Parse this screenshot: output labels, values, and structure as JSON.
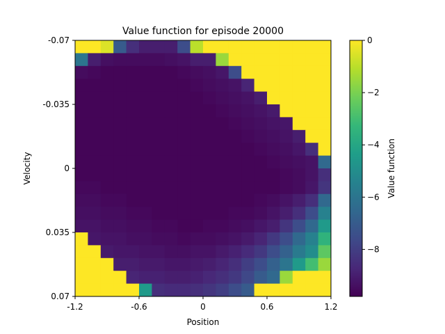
{
  "chart_data": {
    "type": "heatmap",
    "title": "Value function for episode 20000",
    "xlabel": "Position",
    "ylabel": "Velocity",
    "colorbar_label": "Value function",
    "x_range": [
      -1.2,
      1.2
    ],
    "y_range": [
      -0.07,
      0.07
    ],
    "x_ticks": [
      {
        "value": -1.2,
        "label": "-1.2"
      },
      {
        "value": -0.6,
        "label": "-0.6"
      },
      {
        "value": 0,
        "label": "0"
      },
      {
        "value": 0.6,
        "label": "0.6"
      },
      {
        "value": 1.2,
        "label": "1.2"
      }
    ],
    "y_ticks": [
      {
        "value": -0.07,
        "label": "-0.07"
      },
      {
        "value": -0.035,
        "label": "-0.035"
      },
      {
        "value": 0,
        "label": "0"
      },
      {
        "value": 0.035,
        "label": "0.035"
      },
      {
        "value": 0.07,
        "label": "0.07"
      }
    ],
    "colorbar_range": [
      -9.8,
      0
    ],
    "colorbar_ticks": [
      {
        "value": 0,
        "label": "0"
      },
      {
        "value": -2,
        "label": "−2"
      },
      {
        "value": -4,
        "label": "−4"
      },
      {
        "value": -6,
        "label": "−6"
      },
      {
        "value": -8,
        "label": "−8"
      }
    ],
    "colormap": [
      "#440154",
      "#482878",
      "#3e4a89",
      "#31688e",
      "#26828e",
      "#1f9e89",
      "#35b779",
      "#6ece58",
      "#b5de2b",
      "#fde725"
    ],
    "grid_size": [
      20,
      20
    ],
    "values": [
      [
        0,
        0,
        -0.5,
        -7,
        -8.5,
        -9,
        -9,
        -9,
        -7.5,
        -1,
        0,
        0,
        0,
        0,
        0,
        0,
        0,
        0,
        0,
        0
      ],
      [
        -6,
        -9,
        -9.4,
        -9.5,
        -9.5,
        -9.5,
        -9.5,
        -9.4,
        -9.3,
        -9,
        -9,
        -1.5,
        0,
        0,
        0,
        0,
        0,
        0,
        0,
        0
      ],
      [
        -9.5,
        -9.6,
        -9.7,
        -9.7,
        -9.7,
        -9.7,
        -9.7,
        -9.7,
        -9.6,
        -9.5,
        -9.4,
        -9.2,
        -7.5,
        0,
        0,
        0,
        0,
        0,
        0,
        0
      ],
      [
        -9.7,
        -9.7,
        -9.7,
        -9.7,
        -9.7,
        -9.7,
        -9.7,
        -9.7,
        -9.7,
        -9.6,
        -9.5,
        -9.4,
        -9.3,
        -8.8,
        0,
        0,
        0,
        0,
        0,
        0
      ],
      [
        -9.7,
        -9.7,
        -9.7,
        -9.7,
        -9.7,
        -9.7,
        -9.7,
        -9.7,
        -9.7,
        -9.7,
        -9.6,
        -9.5,
        -9.4,
        -9.3,
        -9.0,
        0,
        0,
        0,
        0,
        0
      ],
      [
        -9.7,
        -9.7,
        -9.7,
        -9.7,
        -9.7,
        -9.7,
        -9.7,
        -9.7,
        -9.7,
        -9.7,
        -9.7,
        -9.6,
        -9.5,
        -9.4,
        -9.3,
        -9.1,
        0,
        0,
        0,
        0
      ],
      [
        -9.7,
        -9.7,
        -9.7,
        -9.7,
        -9.7,
        -9.7,
        -9.7,
        -9.7,
        -9.7,
        -9.7,
        -9.7,
        -9.7,
        -9.6,
        -9.5,
        -9.4,
        -9.3,
        -9.2,
        0,
        0,
        0
      ],
      [
        -9.7,
        -9.7,
        -9.7,
        -9.7,
        -9.7,
        -9.7,
        -9.7,
        -9.7,
        -9.7,
        -9.7,
        -9.7,
        -9.7,
        -9.7,
        -9.6,
        -9.5,
        -9.4,
        -9.3,
        -9.0,
        0,
        0
      ],
      [
        -9.7,
        -9.7,
        -9.7,
        -9.7,
        -9.7,
        -9.7,
        -9.7,
        -9.7,
        -9.7,
        -9.7,
        -9.7,
        -9.7,
        -9.7,
        -9.7,
        -9.6,
        -9.5,
        -9.4,
        -9.2,
        -8.5,
        0
      ],
      [
        -9.7,
        -9.7,
        -9.7,
        -9.7,
        -9.7,
        -9.7,
        -9.7,
        -9.7,
        -9.7,
        -9.7,
        -9.7,
        -9.7,
        -9.7,
        -9.7,
        -9.7,
        -9.6,
        -9.5,
        -9.4,
        -9.3,
        -6.5
      ],
      [
        -9.7,
        -9.7,
        -9.7,
        -9.7,
        -9.7,
        -9.7,
        -9.7,
        -9.7,
        -9.7,
        -9.7,
        -9.7,
        -9.7,
        -9.7,
        -9.7,
        -9.7,
        -9.7,
        -9.6,
        -9.5,
        -9.3,
        -8.5
      ],
      [
        -9.6,
        -9.6,
        -9.7,
        -9.7,
        -9.7,
        -9.7,
        -9.7,
        -9.7,
        -9.7,
        -9.7,
        -9.7,
        -9.7,
        -9.7,
        -9.7,
        -9.7,
        -9.7,
        -9.6,
        -9.5,
        -9.2,
        -8.3
      ],
      [
        -9.5,
        -9.5,
        -9.6,
        -9.6,
        -9.7,
        -9.7,
        -9.7,
        -9.7,
        -9.7,
        -9.7,
        -9.7,
        -9.7,
        -9.7,
        -9.7,
        -9.6,
        -9.5,
        -9.3,
        -9.0,
        -8.5,
        -6.5
      ],
      [
        -9.4,
        -9.4,
        -9.5,
        -9.5,
        -9.6,
        -9.6,
        -9.7,
        -9.7,
        -9.7,
        -9.7,
        -9.7,
        -9.7,
        -9.6,
        -9.6,
        -9.5,
        -9.3,
        -9.0,
        -8.5,
        -7.5,
        -5.5
      ],
      [
        -9.3,
        -9.3,
        -9.4,
        -9.4,
        -9.5,
        -9.5,
        -9.6,
        -9.6,
        -9.7,
        -9.7,
        -9.6,
        -9.6,
        -9.5,
        -9.4,
        -9.2,
        -9.0,
        -8.3,
        -7.5,
        -6.5,
        -4.5
      ],
      [
        0,
        -9.2,
        -9.3,
        -9.3,
        -9.4,
        -9.4,
        -9.5,
        -9.5,
        -9.6,
        -9.5,
        -9.5,
        -9.4,
        -9.3,
        -9.1,
        -8.8,
        -8.2,
        -7.5,
        -6.5,
        -5.5,
        -3.5
      ],
      [
        0,
        0,
        -9.1,
        -9.2,
        -9.2,
        -9.3,
        -9.3,
        -9.4,
        -9.4,
        -9.3,
        -9.3,
        -9.1,
        -8.9,
        -8.6,
        -8.2,
        -7.5,
        -6.8,
        -5.8,
        -5.0,
        -2.5
      ],
      [
        0,
        0,
        0,
        -9.0,
        -9.0,
        -9.1,
        -9.1,
        -9.2,
        -9.2,
        -9.1,
        -9.0,
        -8.8,
        -8.5,
        -8.0,
        -7.5,
        -6.8,
        -6.0,
        -4.5,
        -3.0,
        -1.5
      ],
      [
        0,
        0,
        0,
        0,
        -8.8,
        -8.9,
        -8.9,
        -9.0,
        -9.0,
        -8.9,
        -8.7,
        -8.5,
        -8.2,
        -7.7,
        -7.0,
        -6.5,
        -1.5,
        0,
        0,
        0
      ],
      [
        0,
        0,
        0,
        0,
        0,
        -4.5,
        -8.5,
        -8.6,
        -8.6,
        -8.5,
        -8.3,
        -8.0,
        -7.5,
        -7.0,
        0,
        0,
        0,
        0,
        0,
        0
      ]
    ]
  }
}
